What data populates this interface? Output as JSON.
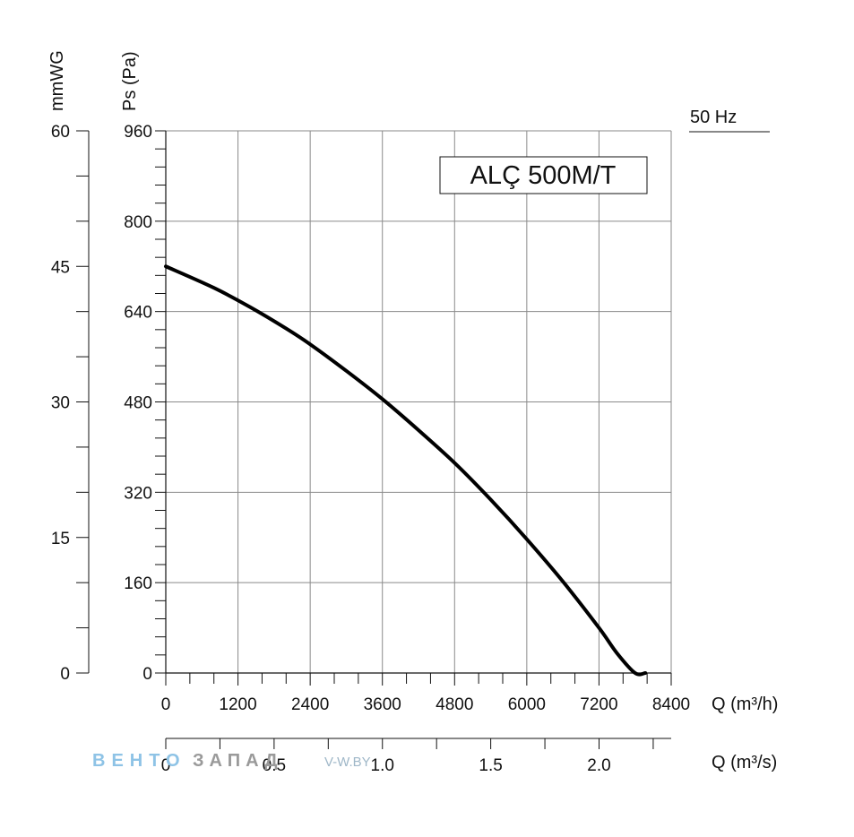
{
  "frequency_label": "50 Hz",
  "model_label": "ALÇ 500M/T",
  "watermark": {
    "brand_a": "ВЕНТО",
    "brand_b": "ЗАПАД",
    "site": "V-W.BY"
  },
  "chart_data": {
    "type": "line",
    "title": "ALÇ 500M/T",
    "xlabel": "Q (m³/h)",
    "xlabel_secondary": "Q (m³/s)",
    "ylabel": "Ps (Pa)",
    "ylabel_secondary": "mmWG",
    "xlim": [
      0,
      8400
    ],
    "ylim": [
      0,
      960
    ],
    "secondary_xlim": [
      0,
      2.333
    ],
    "secondary_ylim": [
      0,
      60
    ],
    "x_ticks": [
      "0",
      "1200",
      "2400",
      "3600",
      "4800",
      "6000",
      "7200",
      "8400"
    ],
    "y_ticks": [
      "0",
      "160",
      "320",
      "480",
      "640",
      "800",
      "960"
    ],
    "secondary_x_ticks": [
      "0",
      "0.5",
      "1.0",
      "1.5",
      "2.0"
    ],
    "secondary_y_ticks": [
      "0",
      "15",
      "30",
      "45",
      "60"
    ],
    "grid": true,
    "series": [
      {
        "name": "",
        "color": "#000000",
        "x": [
          0,
          800,
          1400,
          2000,
          2400,
          3000,
          3600,
          4200,
          4800,
          5400,
          6000,
          6600,
          7200,
          7500,
          7800,
          7970
        ],
        "y": [
          720,
          682,
          648,
          610,
          582,
          535,
          485,
          430,
          372,
          307,
          237,
          162,
          80,
          35,
          -10,
          0
        ]
      }
    ]
  }
}
